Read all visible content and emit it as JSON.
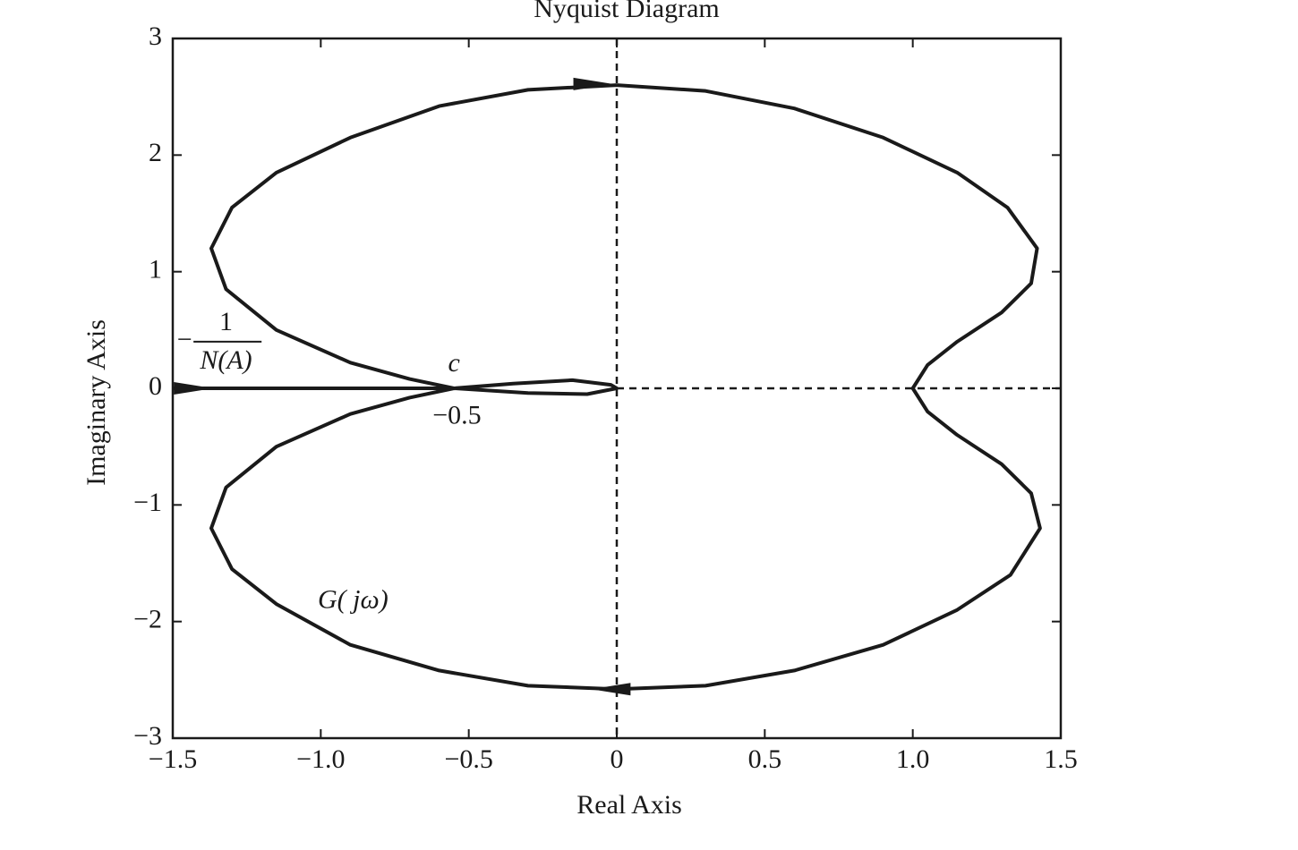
{
  "chart_data": {
    "type": "line",
    "title": "Nyquist Diagram",
    "x_label": "Real Axis",
    "y_label": "Imaginary Axis",
    "xlim": [
      -1.5,
      1.5
    ],
    "ylim": [
      -3,
      3
    ],
    "xticks": [
      {
        "value": -1.5,
        "label": "−1.5"
      },
      {
        "value": -1,
        "label": "−1.0"
      },
      {
        "value": -0.5,
        "label": "−0.5"
      },
      0,
      0.5,
      {
        "value": 1,
        "label": "1.0"
      },
      1.5
    ],
    "yticks": [
      {
        "value": -3,
        "label": "−3"
      },
      {
        "value": -2,
        "label": "−2"
      },
      {
        "value": -1,
        "label": "−1"
      },
      0,
      1,
      2,
      3
    ],
    "grid": false,
    "series": [
      {
        "color": "#1a1a1a",
        "x": [
          0,
          0.3,
          0.6,
          0.9,
          1.15,
          1.32,
          1.42,
          1.4,
          1.3,
          1.15,
          1.05,
          1.0,
          1.05,
          1.15,
          1.3,
          1.4,
          1.43,
          1.33,
          1.15,
          0.9,
          0.6,
          0.3,
          0,
          -0.3,
          -0.6,
          -0.9,
          -1.15,
          -1.3,
          -1.37,
          -1.32,
          -1.15,
          -0.9,
          -0.7,
          -0.55,
          -0.35,
          -0.15,
          -0.02,
          0,
          -0.1,
          -0.3,
          -0.55,
          -0.7,
          -0.9,
          -1.15,
          -1.32,
          -1.37,
          -1.3,
          -1.15,
          -0.9,
          -0.6,
          -0.3,
          0
        ],
        "values": [
          2.6,
          2.55,
          2.4,
          2.15,
          1.85,
          1.55,
          1.2,
          0.9,
          0.65,
          0.4,
          0.2,
          0,
          -0.2,
          -0.4,
          -0.65,
          -0.9,
          -1.2,
          -1.6,
          -1.9,
          -2.2,
          -2.42,
          -2.55,
          -2.58,
          -2.55,
          -2.42,
          -2.2,
          -1.85,
          -1.55,
          -1.2,
          -0.85,
          -0.5,
          -0.22,
          -0.08,
          0,
          0.04,
          0.07,
          0.03,
          0,
          -0.05,
          -0.04,
          0,
          0.08,
          0.22,
          0.5,
          0.85,
          1.2,
          1.55,
          1.85,
          2.15,
          2.42,
          2.56,
          2.6
        ]
      },
      {
        "color": "#1a1a1a",
        "x": [
          -1.5,
          -0.55
        ],
        "values": [
          0,
          0
        ]
      }
    ],
    "annotations": [
      "c",
      "−0.5",
      "G( jω)",
      "−",
      "1",
      "N(A)"
    ]
  }
}
